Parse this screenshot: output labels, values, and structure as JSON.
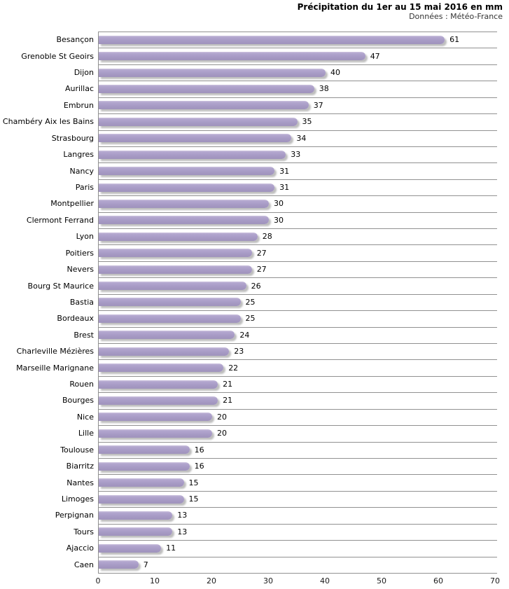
{
  "header": {
    "title": "Précipitation du 1er au 15 mai 2016 en mm",
    "subtitle": "Données : Météo-France"
  },
  "chart_data": {
    "type": "bar",
    "orientation": "horizontal",
    "title": "Précipitation du 1er au 15 mai 2016 en mm",
    "subtitle": "Données : Météo-France",
    "categories": [
      "Besançon",
      "Grenoble St Geoirs",
      "Dijon",
      "Aurillac",
      "Embrun",
      "Chambéry Aix les Bains",
      "Strasbourg",
      "Langres",
      "Nancy",
      "Paris",
      "Montpellier",
      "Clermont Ferrand",
      "Lyon",
      "Poitiers",
      "Nevers",
      "Bourg St Maurice",
      "Bastia",
      "Bordeaux",
      "Brest",
      "Charleville Mézières",
      "Marseille Marignane",
      "Rouen",
      "Bourges",
      "Nice",
      "Lille",
      "Toulouse",
      "Biarritz",
      "Nantes",
      "Limoges",
      "Perpignan",
      "Tours",
      "Ajaccio",
      "Caen"
    ],
    "values": [
      61,
      47,
      40,
      38,
      37,
      35,
      34,
      33,
      31,
      31,
      30,
      30,
      28,
      27,
      27,
      26,
      25,
      25,
      24,
      23,
      22,
      21,
      21,
      20,
      20,
      16,
      16,
      15,
      15,
      13,
      13,
      11,
      7
    ],
    "xlabel": "",
    "ylabel": "",
    "xlim": [
      0,
      70
    ],
    "xticks": [
      0,
      10,
      20,
      30,
      40,
      50,
      60,
      70
    ],
    "value_labels": true,
    "grid": "horizontal-category-separators",
    "legend": "none",
    "colors": {
      "bar": "#a89bc6",
      "bar_highlight": "#cdc3df",
      "gridline": "#919191",
      "text": "#000000",
      "subtitle_text": "#333333",
      "background": "#ffffff"
    }
  }
}
